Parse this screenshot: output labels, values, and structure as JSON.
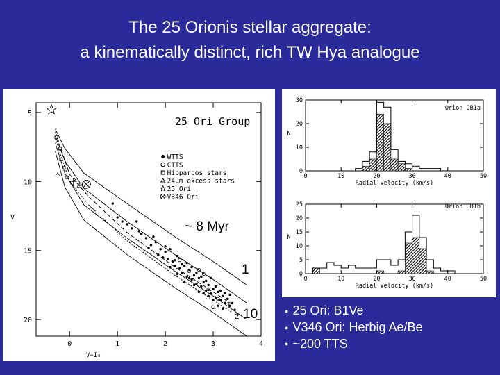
{
  "slide": {
    "title_line1": "The 25 Orionis stellar aggregate:",
    "title_line2": "a kinematically distinct, rich TW Hya analogue",
    "background_color": "#2b2a9a"
  },
  "bullets": [
    {
      "text": "25 Ori: B1Ve"
    },
    {
      "text": "V346 Ori: Herbig Ae/Be"
    },
    {
      "text": "~200 TTS"
    }
  ],
  "chart_data": [
    {
      "type": "scatter",
      "title": "25 Ori Group",
      "xlabel": "V−I₀",
      "ylabel": "V",
      "xlim": [
        -0.7,
        4.0
      ],
      "ylim": [
        21.2,
        4.3
      ],
      "y_inverted": true,
      "x_ticks": [
        "0",
        "1",
        "2",
        "3",
        "4"
      ],
      "y_ticks": [
        "5",
        "10",
        "15",
        "20"
      ],
      "legend": {
        "placement": "middle-right",
        "entries": [
          {
            "marker": "filled-circle",
            "label": "WTTS"
          },
          {
            "marker": "open-circle",
            "label": "CTTS"
          },
          {
            "marker": "open-square",
            "label": "Hipparcos stars"
          },
          {
            "marker": "open-triangle",
            "label": "24µm excess stars"
          },
          {
            "marker": "open-star",
            "label": "25 Ori"
          },
          {
            "marker": "circled-cross",
            "label": "V346 Ori"
          }
        ]
      },
      "annotations": [
        "~ 8 Myr",
        "1",
        "10",
        "2"
      ],
      "isochrones": [
        {
          "label": "",
          "x": [
            -0.3,
            -0.1,
            0.3,
            1.2,
            2.2,
            3.0,
            3.7
          ],
          "y": [
            6.2,
            7.6,
            9.4,
            11.6,
            14.0,
            15.8,
            17.5
          ]
        },
        {
          "label": "",
          "x": [
            -0.3,
            -0.1,
            0.3,
            1.2,
            2.2,
            3.0,
            3.7
          ],
          "y": [
            6.7,
            8.5,
            10.5,
            12.9,
            15.3,
            17.1,
            18.8
          ]
        },
        {
          "label": "",
          "x": [
            -0.3,
            -0.1,
            0.3,
            1.2,
            2.2,
            3.0,
            3.7
          ],
          "y": [
            7.2,
            9.4,
            11.7,
            14.1,
            16.5,
            18.3,
            20.0
          ]
        },
        {
          "label": "",
          "x": [
            -0.3,
            -0.1,
            0.3,
            1.2,
            2.2,
            3.0,
            3.7
          ],
          "y": [
            7.8,
            10.4,
            12.8,
            15.3,
            17.7,
            19.5,
            21.2
          ]
        }
      ],
      "model_curves": [
        {
          "style": "dashed",
          "x": [
            -0.3,
            0.0,
            0.4,
            1.2,
            2.2,
            3.0,
            3.4
          ],
          "y": [
            6.4,
            9.5,
            11.1,
            13.7,
            16.2,
            18.0,
            18.9
          ]
        },
        {
          "style": "dotted",
          "x": [
            -0.3,
            0.0,
            0.4,
            1.2,
            2.2,
            3.0,
            3.4
          ],
          "y": [
            6.9,
            10.0,
            11.7,
            14.3,
            16.8,
            18.6,
            19.5
          ]
        }
      ],
      "special_points": [
        {
          "label": "25 Ori",
          "x": -0.38,
          "y": 4.8,
          "marker": "open-star"
        },
        {
          "label": "V346 Ori",
          "x": 0.35,
          "y": 10.2,
          "marker": "circled-cross"
        }
      ],
      "hipparcos_points": [
        [
          -0.28,
          6.8
        ],
        [
          -0.2,
          7.6
        ],
        [
          -0.18,
          8.4
        ],
        [
          -0.12,
          9.0
        ],
        [
          -0.05,
          9.7
        ],
        [
          0.05,
          10.1
        ]
      ],
      "excess_points": [
        [
          -0.25,
          9.5
        ],
        [
          0.1,
          9.9
        ],
        [
          0.2,
          10.3
        ]
      ],
      "wtts_points": [
        [
          0.9,
          11.6
        ],
        [
          1.0,
          12.6
        ],
        [
          1.1,
          12.9
        ],
        [
          1.3,
          13.4
        ],
        [
          1.4,
          12.9
        ],
        [
          1.5,
          13.8
        ],
        [
          1.6,
          14.1
        ],
        [
          1.7,
          14.6
        ],
        [
          1.8,
          14.4
        ],
        [
          1.9,
          14.9
        ],
        [
          2.0,
          15.1
        ],
        [
          2.05,
          15.6
        ],
        [
          2.1,
          14.9
        ],
        [
          2.15,
          15.8
        ],
        [
          2.2,
          16.1
        ],
        [
          2.25,
          15.4
        ],
        [
          2.3,
          16.3
        ],
        [
          2.35,
          16.6
        ],
        [
          2.4,
          16.1
        ],
        [
          2.45,
          16.9
        ],
        [
          2.5,
          16.4
        ],
        [
          2.55,
          17.1
        ],
        [
          2.6,
          16.8
        ],
        [
          2.65,
          17.4
        ],
        [
          2.7,
          17.0
        ],
        [
          2.75,
          17.6
        ],
        [
          2.8,
          17.3
        ],
        [
          2.85,
          17.9
        ],
        [
          2.9,
          17.5
        ],
        [
          2.95,
          18.1
        ],
        [
          3.0,
          17.8
        ],
        [
          3.05,
          18.4
        ],
        [
          3.1,
          18.0
        ],
        [
          3.15,
          18.6
        ],
        [
          3.2,
          18.3
        ],
        [
          3.25,
          18.8
        ],
        [
          3.3,
          18.5
        ],
        [
          3.35,
          19.0
        ],
        [
          3.4,
          18.8
        ],
        [
          2.2,
          15.7
        ],
        [
          2.35,
          16.0
        ],
        [
          2.5,
          17.0
        ],
        [
          2.6,
          17.5
        ],
        [
          2.75,
          16.9
        ],
        [
          2.85,
          17.2
        ],
        [
          2.95,
          17.0
        ],
        [
          3.05,
          17.6
        ],
        [
          3.15,
          17.9
        ],
        [
          3.25,
          18.1
        ],
        [
          2.4,
          17.3
        ],
        [
          2.55,
          16.2
        ],
        [
          2.7,
          18.0
        ],
        [
          2.9,
          18.3
        ],
        [
          3.0,
          18.6
        ],
        [
          3.1,
          19.0
        ],
        [
          1.95,
          15.5
        ],
        [
          2.1,
          16.2
        ],
        [
          2.25,
          16.7
        ],
        [
          2.45,
          15.9
        ],
        [
          2.65,
          16.6
        ],
        [
          2.8,
          18.1
        ],
        [
          3.2,
          19.2
        ],
        [
          3.35,
          18.2
        ],
        [
          3.45,
          19.3
        ],
        [
          1.2,
          13.1
        ],
        [
          1.45,
          13.6
        ],
        [
          1.65,
          14.8
        ],
        [
          1.75,
          14.0
        ],
        [
          1.85,
          15.3
        ],
        [
          2.0,
          14.7
        ]
      ],
      "ctts_points": [
        [
          2.3,
          15.7
        ],
        [
          2.5,
          16.5
        ],
        [
          2.7,
          16.4
        ],
        [
          2.9,
          17.8
        ],
        [
          3.1,
          18.5
        ],
        [
          3.3,
          18.9
        ],
        [
          2.8,
          16.7
        ],
        [
          3.0,
          19.1
        ]
      ]
    },
    {
      "type": "bar",
      "title": "Orion OB1a",
      "xlabel": "Radial Velocity (km/s)",
      "ylabel": "N",
      "xlim": [
        0,
        50
      ],
      "ylim": [
        0,
        30
      ],
      "x_ticks": [
        "0",
        "10",
        "20",
        "30",
        "40",
        "50"
      ],
      "y_ticks": [
        "0",
        "10",
        "20",
        "30"
      ],
      "bin_width": 2,
      "bin_starts": [
        14,
        16,
        18,
        20,
        22,
        24,
        26,
        28,
        30,
        32,
        34,
        36
      ],
      "series": [
        {
          "style": "open",
          "values": [
            1,
            4,
            8,
            29,
            27,
            9,
            4,
            3,
            2,
            1,
            1,
            1
          ]
        },
        {
          "style": "hatched",
          "values": [
            0,
            2,
            5,
            24,
            20,
            5,
            3,
            1,
            0,
            0,
            0,
            0
          ]
        }
      ]
    },
    {
      "type": "bar",
      "title": "Orion OB1b",
      "xlabel": "Radial Velocity (km/s)",
      "ylabel": "N",
      "xlim": [
        0,
        50
      ],
      "ylim": [
        0,
        25
      ],
      "x_ticks": [
        "0",
        "10",
        "20",
        "30",
        "40",
        "50"
      ],
      "y_ticks": [
        "0",
        "5",
        "10",
        "15",
        "20",
        "25"
      ],
      "bin_width": 2,
      "bin_starts": [
        2,
        4,
        6,
        8,
        10,
        12,
        14,
        16,
        18,
        20,
        22,
        24,
        26,
        28,
        30,
        32,
        34,
        36,
        38,
        40
      ],
      "series": [
        {
          "style": "open",
          "values": [
            2,
            2,
            4,
            3,
            2,
            3,
            2,
            2,
            2,
            5,
            5,
            3,
            5,
            15,
            21,
            13,
            5,
            2,
            1,
            1
          ]
        },
        {
          "style": "hatched",
          "values": [
            2,
            0,
            0,
            0,
            0,
            0,
            0,
            0,
            0,
            1,
            0,
            0,
            1,
            11,
            13,
            9,
            1,
            0,
            0,
            0
          ]
        }
      ]
    }
  ]
}
